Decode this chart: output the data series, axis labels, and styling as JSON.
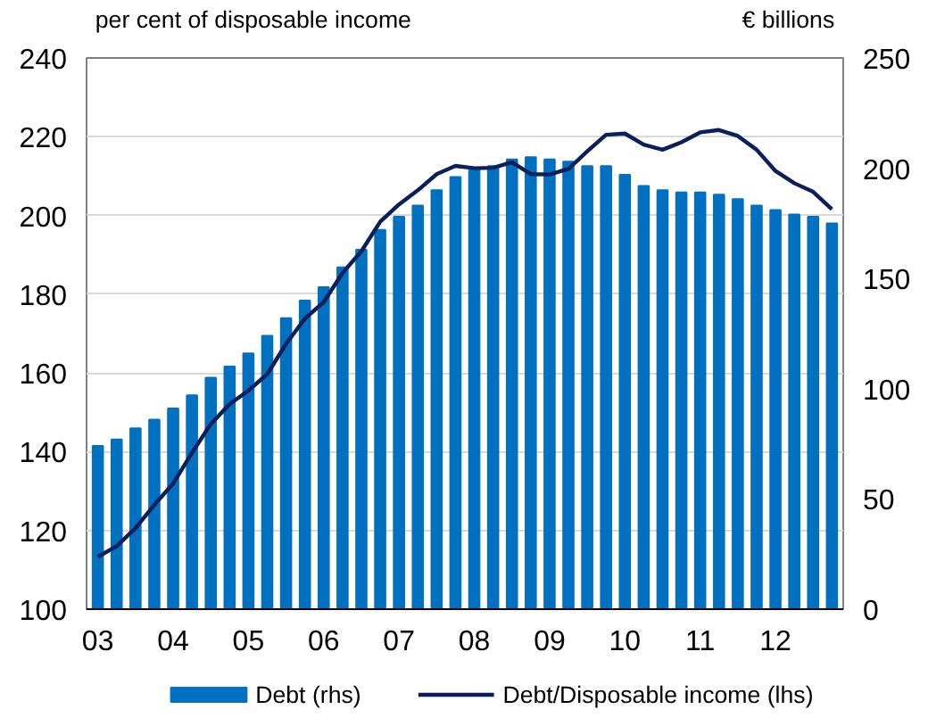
{
  "chart_data": {
    "type": "bar",
    "ylabel": "per cent of disposable income",
    "y2label": "€ billions",
    "categories": [
      "03",
      null,
      null,
      null,
      "04",
      null,
      null,
      null,
      "05",
      null,
      null,
      null,
      "06",
      null,
      null,
      null,
      "07",
      null,
      null,
      null,
      "08",
      null,
      null,
      null,
      "09",
      null,
      null,
      null,
      "10",
      null,
      null,
      null,
      "11",
      null,
      null,
      null,
      "12",
      null,
      null,
      null
    ],
    "ylim": [
      100,
      240
    ],
    "yticks": [
      100,
      120,
      140,
      160,
      180,
      200,
      220,
      240
    ],
    "y2lim": [
      0,
      250
    ],
    "y2ticks": [
      0,
      50,
      100,
      150,
      200,
      250
    ],
    "grid": "y",
    "legend": "bottom",
    "series": [
      {
        "name": "Debt (rhs)",
        "axis": "y2",
        "color": "#0070c0",
        "values": [
          74,
          77,
          82,
          86,
          91,
          97,
          105,
          110,
          116,
          124,
          132,
          140,
          146,
          155,
          163,
          172,
          178,
          183,
          190,
          196,
          199,
          201,
          204,
          205,
          204,
          203,
          201,
          201,
          197,
          192,
          190,
          189,
          189,
          188,
          186,
          183,
          181,
          179,
          178,
          175
        ]
      },
      {
        "name": "Debt/Disposable income (lhs)",
        "type": "line",
        "color": "#0b1f5c",
        "values": [
          113.3,
          116,
          120.6,
          126.5,
          131.9,
          139.7,
          147,
          152.1,
          155.5,
          159.7,
          167.4,
          173.8,
          178,
          185.4,
          190.9,
          198.4,
          202.8,
          206.4,
          210.5,
          212.6,
          212,
          212.1,
          213.5,
          210.5,
          210.4,
          211.8,
          216.3,
          220.5,
          220.8,
          218,
          216.7,
          218.6,
          221.1,
          221.7,
          220.2,
          216.7,
          211.3,
          208.2,
          206,
          201.6
        ]
      }
    ]
  }
}
